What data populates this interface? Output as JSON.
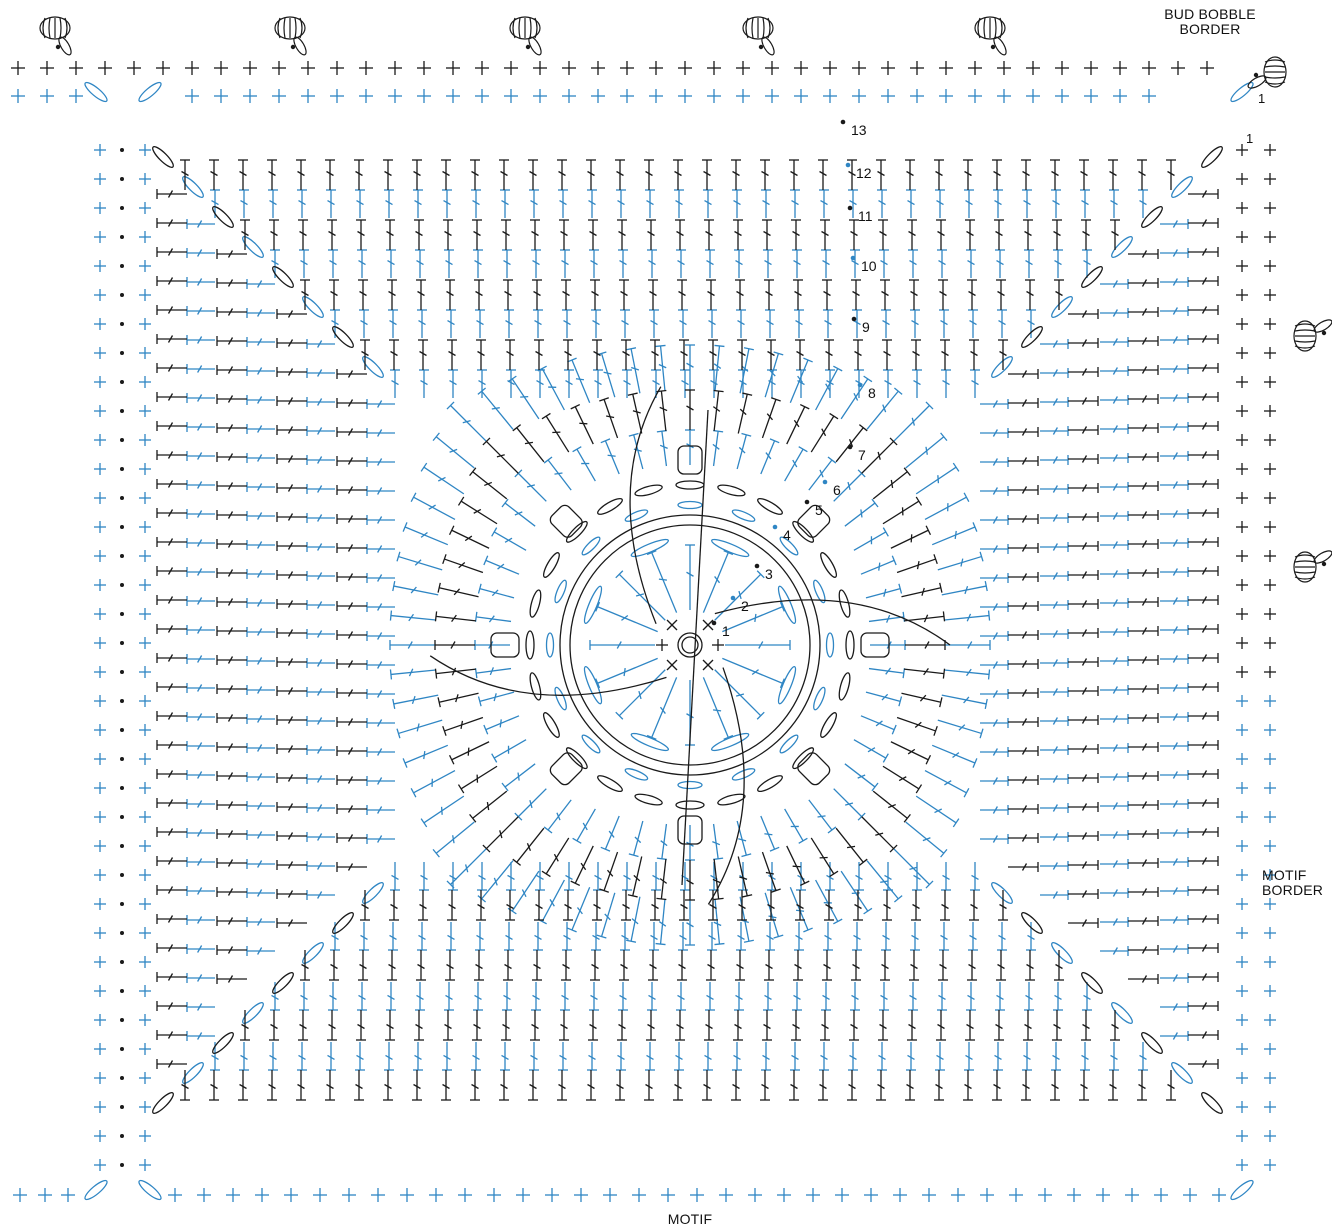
{
  "labels": {
    "bud_bobble_border_line1": "BUD BOBBLE",
    "bud_bobble_border_line2": "BORDER",
    "motif_border_line1": "MOTIF",
    "motif_border_line2": "BORDER",
    "motif": "MOTIF"
  },
  "round_numbers": [
    "1",
    "2",
    "3",
    "4",
    "5",
    "6",
    "7",
    "8",
    "9",
    "10",
    "11",
    "12",
    "13"
  ],
  "border_round_numbers": [
    "1",
    "1"
  ],
  "colors": {
    "black_rounds": "#1a1a1a",
    "blue_rounds": "#2f86c4",
    "background": "#ffffff"
  },
  "symbols": {
    "center": "magic-ring-icon",
    "single_crochet": "plus-stitch-icon",
    "double_crochet": "double-crochet-icon",
    "chain": "chain-oval-icon",
    "slip_stitch": "slip-stitch-dot-icon",
    "bobble": "bud-bobble-icon"
  }
}
